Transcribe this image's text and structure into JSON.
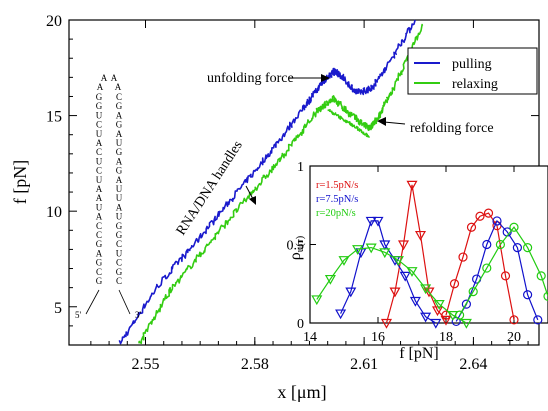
{
  "chart_data": [
    {
      "type": "line",
      "xlabel": "x [μm]",
      "ylabel": "f [pN]",
      "xlim": [
        2.529,
        2.658
      ],
      "ylim": [
        3.0,
        20.0
      ],
      "x_ticks": [
        "2.55",
        "2.58",
        "2.61",
        "2.64"
      ],
      "y_ticks": [
        "5",
        "10",
        "15",
        "20"
      ],
      "grid": false,
      "legend": {
        "position": "top-right",
        "entries": [
          "pulling",
          "relaxing"
        ]
      },
      "colors": {
        "pulling": "#1a1acc",
        "relaxing": "#33cc11"
      },
      "series": [
        {
          "name": "pulling",
          "x": [
            2.543,
            2.553,
            2.563,
            2.573,
            2.583,
            2.593,
            2.598,
            2.6015,
            2.603,
            2.608,
            2.612,
            2.616,
            2.624
          ],
          "y": [
            3.1,
            6.0,
            8.2,
            10.5,
            12.8,
            15.3,
            16.6,
            17.3,
            17.2,
            16.2,
            16.4,
            17.5,
            20.0
          ]
        },
        {
          "name": "relaxing",
          "x": [
            2.548,
            2.557,
            2.567,
            2.577,
            2.587,
            2.597,
            2.6015,
            2.606,
            2.6115,
            2.6135,
            2.618,
            2.626
          ],
          "y": [
            3.0,
            5.9,
            8.2,
            10.5,
            12.7,
            15.2,
            15.9,
            15.1,
            14.3,
            14.8,
            16.4,
            19.7
          ]
        },
        {
          "name": "",
          "x": [
            2.6,
            2.606,
            2.6115
          ],
          "y": [
            15.3,
            14.6,
            13.9
          ]
        }
      ],
      "annotations": [
        "unfolding force",
        "refolding force",
        "RNA/DNA handles"
      ]
    },
    {
      "type": "line",
      "xlabel": "f [pN]",
      "ylabel": "ρu(r)",
      "xlim": [
        14,
        21
      ],
      "ylim": [
        0,
        1
      ],
      "x_ticks": [
        "14",
        "16",
        "18",
        "20"
      ],
      "y_ticks": [
        "0",
        "0.5",
        "1"
      ],
      "legend": {
        "position": "top-left",
        "entries": [
          "r=1.5pN/s",
          "r=7.5pN/s",
          "r=20pN/s"
        ]
      },
      "colors": {
        "r=1.5pN/s": "#dd1111",
        "r=7.5pN/s": "#1111cc",
        "r=20pN/s": "#22cc11"
      },
      "series": [
        {
          "name": "r=1.5pN/s",
          "marker": "triangle-down",
          "x": [
            16.25,
            16.5,
            16.75,
            17.0,
            17.25,
            17.5,
            17.75,
            18.0
          ],
          "y": [
            0.0,
            0.2,
            0.5,
            0.88,
            0.56,
            0.2,
            0.08,
            0.02
          ]
        },
        {
          "name": "r=1.5pN/s",
          "marker": "circle",
          "x": [
            18.0,
            18.25,
            18.5,
            18.75,
            19.0,
            19.25,
            19.5,
            19.75,
            20.0
          ],
          "y": [
            0.05,
            0.25,
            0.42,
            0.61,
            0.68,
            0.7,
            0.62,
            0.3,
            0.02
          ]
        },
        {
          "name": "r=7.5pN/s",
          "marker": "triangle-down",
          "x": [
            14.9,
            15.2,
            15.5,
            15.8,
            16.0,
            16.2,
            16.5,
            16.8,
            17.1,
            17.4,
            17.7
          ],
          "y": [
            0.06,
            0.2,
            0.45,
            0.65,
            0.65,
            0.5,
            0.4,
            0.3,
            0.14,
            0.04,
            0.0
          ]
        },
        {
          "name": "r=7.5pN/s",
          "marker": "circle",
          "x": [
            18.3,
            18.6,
            18.9,
            19.2,
            19.5,
            19.8,
            20.1,
            20.4,
            20.7
          ],
          "y": [
            0.01,
            0.12,
            0.28,
            0.5,
            0.65,
            0.58,
            0.48,
            0.18,
            0.02
          ]
        },
        {
          "name": "r=20pN/s",
          "marker": "triangle-down",
          "x": [
            14.2,
            14.6,
            15.0,
            15.4,
            15.8,
            16.2,
            16.6,
            17.0,
            17.4,
            17.8,
            18.2,
            18.6
          ],
          "y": [
            0.15,
            0.28,
            0.4,
            0.47,
            0.48,
            0.45,
            0.4,
            0.33,
            0.22,
            0.12,
            0.05,
            0.0
          ]
        },
        {
          "name": "r=20pN/s",
          "marker": "circle",
          "x": [
            18.4,
            18.8,
            19.2,
            19.6,
            20.0,
            20.4,
            20.8,
            21.0
          ],
          "y": [
            0.05,
            0.2,
            0.35,
            0.5,
            0.61,
            0.48,
            0.3,
            0.17
          ]
        }
      ]
    }
  ],
  "hairpin": {
    "left_strand": [
      "G",
      "G",
      "U",
      "C",
      "U",
      "A",
      "C",
      "U",
      "C",
      "U",
      "A",
      "A",
      "U",
      "A",
      "C",
      "C",
      "G",
      "A",
      "G",
      "C",
      "G"
    ],
    "right_strand": [
      "C",
      "G",
      "A",
      "G",
      "A",
      "U",
      "G",
      "A",
      "G",
      "A",
      "U",
      "U",
      "A",
      "U",
      "G",
      "G",
      "C",
      "U",
      "C",
      "G",
      "C"
    ],
    "loop": [
      "A",
      "A",
      "A",
      "A"
    ],
    "end_5": "5'",
    "end_3": "3'"
  }
}
